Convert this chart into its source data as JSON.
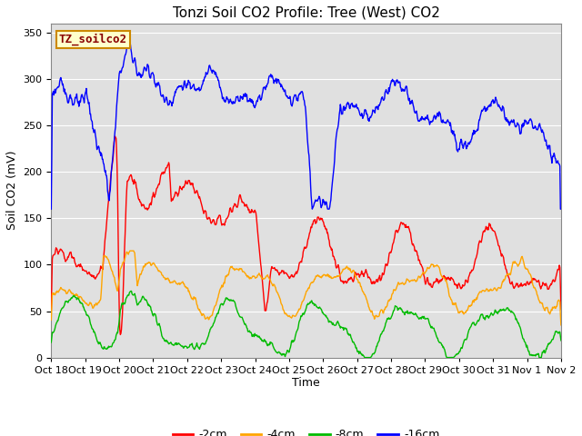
{
  "title": "Tonzi Soil CO2 Profile: Tree (West) CO2",
  "ylabel": "Soil CO2 (mV)",
  "xlabel": "Time",
  "legend_label": "TZ_soilco2",
  "series_labels": [
    "-2cm",
    "-4cm",
    "-8cm",
    "-16cm"
  ],
  "series_colors": [
    "#ff0000",
    "#ffa500",
    "#00bb00",
    "#0000ff"
  ],
  "ylim": [
    0,
    360
  ],
  "yticks": [
    0,
    50,
    100,
    150,
    200,
    250,
    300,
    350
  ],
  "xtick_labels": [
    "Oct 18",
    "Oct 19",
    "Oct 20",
    "Oct 21",
    "Oct 22",
    "Oct 23",
    "Oct 24",
    "Oct 25",
    "Oct 26",
    "Oct 27",
    "Oct 28",
    "Oct 29",
    "Oct 30",
    "Oct 31",
    "Nov 1",
    "Nov 2"
  ],
  "background_color": "#ffffff",
  "plot_bg_color": "#e0e0e0",
  "grid_color": "#ffffff",
  "title_fontsize": 11,
  "axis_label_fontsize": 9,
  "tick_fontsize": 8,
  "legend_fontsize": 9,
  "line_width": 1.0,
  "n_points": 960
}
